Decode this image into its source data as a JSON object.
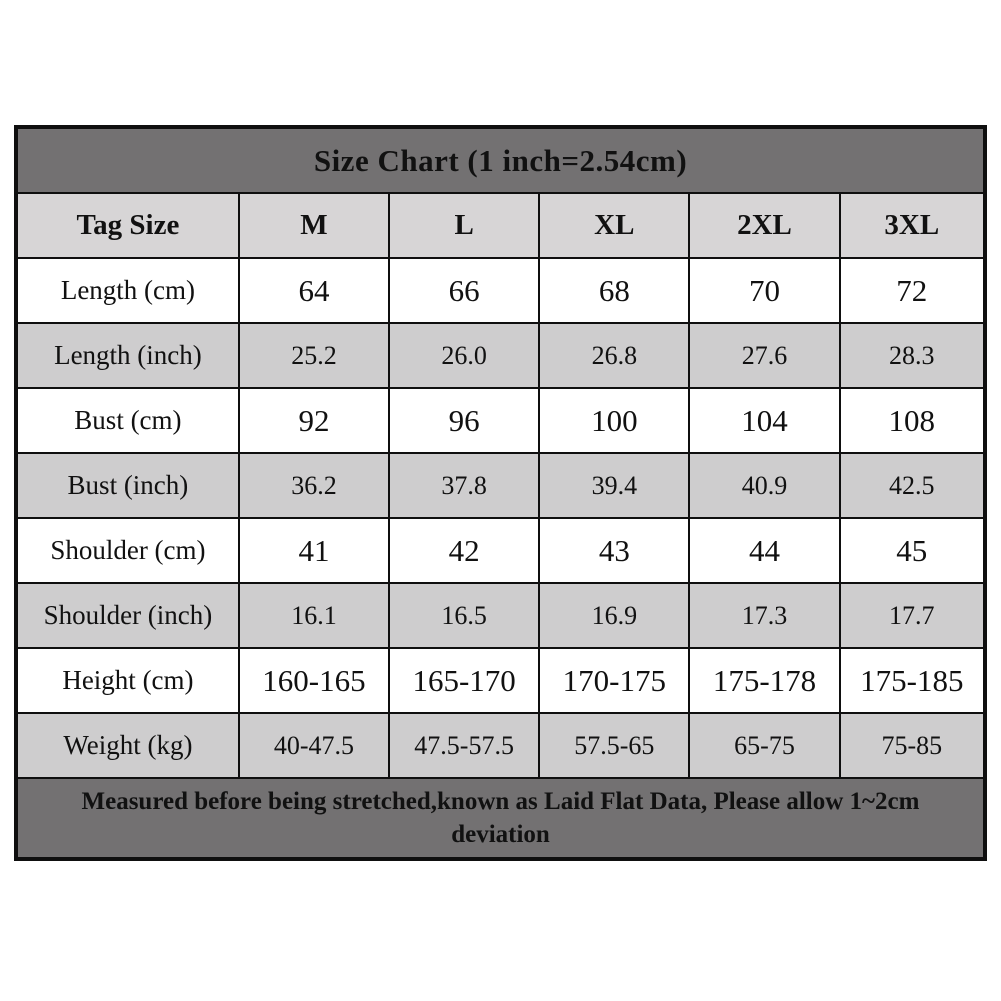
{
  "title": "Size Chart (1 inch=2.54cm)",
  "footer": {
    "text": "Measured before being stretched,known as Laid Flat Data, Please allow 1~2cm deviation"
  },
  "colors": {
    "title_band": "#737172",
    "footer_band": "#737172",
    "header_row": "#d7d5d6",
    "alt_row": "#cecdce",
    "white_row": "#ffffff",
    "border": "#0f0f0f",
    "text": "#111111"
  },
  "chart_data": {
    "type": "table",
    "title": "Size Chart (1 inch=2.54cm)",
    "columns": [
      "Tag Size",
      "M",
      "L",
      "XL",
      "2XL",
      "3XL"
    ],
    "rows": [
      {
        "label": "Length (cm)",
        "shade": "white",
        "values": [
          "64",
          "66",
          "68",
          "70",
          "72"
        ]
      },
      {
        "label": "Length (inch)",
        "shade": "gray",
        "values": [
          "25.2",
          "26.0",
          "26.8",
          "27.6",
          "28.3"
        ]
      },
      {
        "label": "Bust (cm)",
        "shade": "white",
        "values": [
          "92",
          "96",
          "100",
          "104",
          "108"
        ]
      },
      {
        "label": "Bust (inch)",
        "shade": "gray",
        "values": [
          "36.2",
          "37.8",
          "39.4",
          "40.9",
          "42.5"
        ]
      },
      {
        "label": "Shoulder (cm)",
        "shade": "white",
        "values": [
          "41",
          "42",
          "43",
          "44",
          "45"
        ]
      },
      {
        "label": "Shoulder (inch)",
        "shade": "gray",
        "values": [
          "16.1",
          "16.5",
          "16.9",
          "17.3",
          "17.7"
        ]
      },
      {
        "label": "Height (cm)",
        "shade": "white",
        "values": [
          "160-165",
          "165-170",
          "170-175",
          "175-178",
          "175-185"
        ]
      },
      {
        "label": "Weight (kg)",
        "shade": "gray",
        "values": [
          "40-47.5",
          "47.5-57.5",
          "57.5-65",
          "65-75",
          "75-85"
        ]
      }
    ],
    "footnote": "Measured before being stretched,known as Laid Flat Data, Please allow 1~2cm deviation",
    "layout": {
      "first_column_width_pct": 23,
      "other_column_width_pct": 15.4
    }
  }
}
